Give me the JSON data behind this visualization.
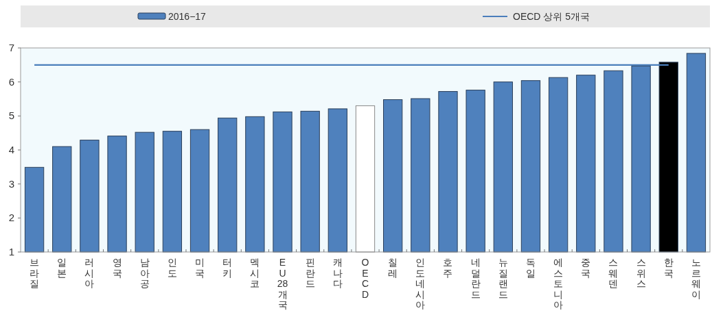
{
  "chart_data": {
    "type": "bar",
    "categories": [
      "브라질",
      "일본",
      "러시아",
      "영국",
      "남아공",
      "인도",
      "미국",
      "터키",
      "멕시코",
      "EU28개국",
      "핀란드",
      "캐나다",
      "OECD",
      "칠레",
      "인도네시아",
      "호주",
      "네덜란드",
      "뉴질랜드",
      "독일",
      "에스토니아",
      "중국",
      "스웨덴",
      "스위스",
      "한국",
      "노르웨이"
    ],
    "series": [
      {
        "name": "2016−17",
        "type": "bar",
        "color": "#4f81bd",
        "colors": [
          "#4f81bd",
          "#4f81bd",
          "#4f81bd",
          "#4f81bd",
          "#4f81bd",
          "#4f81bd",
          "#4f81bd",
          "#4f81bd",
          "#4f81bd",
          "#4f81bd",
          "#4f81bd",
          "#4f81bd",
          "#ffffff",
          "#4f81bd",
          "#4f81bd",
          "#4f81bd",
          "#4f81bd",
          "#4f81bd",
          "#4f81bd",
          "#4f81bd",
          "#4f81bd",
          "#4f81bd",
          "#4f81bd",
          "#000000",
          "#4f81bd"
        ],
        "values": [
          3.49,
          4.1,
          4.29,
          4.41,
          4.52,
          4.55,
          4.6,
          4.94,
          4.98,
          5.12,
          5.14,
          5.21,
          5.3,
          5.48,
          5.51,
          5.72,
          5.76,
          6.0,
          6.04,
          6.13,
          6.2,
          6.33,
          6.47,
          6.58,
          6.84
        ]
      },
      {
        "name": "OECD 상위 5개국",
        "type": "line",
        "color": "#4a7ebb",
        "values": [
          6.5,
          6.5,
          6.5,
          6.5,
          6.5,
          6.5,
          6.5,
          6.5,
          6.5,
          6.5,
          6.5,
          6.5,
          6.5,
          6.5,
          6.5,
          6.5,
          6.5,
          6.5,
          6.5,
          6.5,
          6.5,
          6.5,
          6.5,
          6.5,
          null
        ]
      }
    ],
    "ylim": [
      1,
      7
    ],
    "yticks": [
      1,
      2,
      3,
      4,
      5,
      6,
      7
    ],
    "grid": false,
    "legend": "top"
  }
}
